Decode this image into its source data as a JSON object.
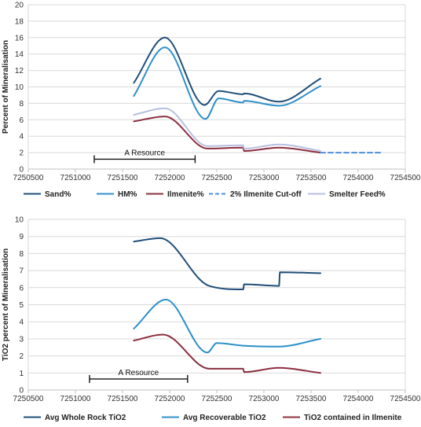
{
  "chart_data": [
    {
      "type": "line",
      "ylabel": "Percent of Mineralisation",
      "xlim": [
        7250500,
        7254500
      ],
      "ylim": [
        0,
        20
      ],
      "x_ticks": [
        "7250500",
        "7251000",
        "7251500",
        "7252000",
        "7252500",
        "7253000",
        "7253500",
        "7254000",
        "7254500"
      ],
      "y_ticks": [
        "0",
        "2",
        "4",
        "6",
        "8",
        "10",
        "12",
        "14",
        "16",
        "18",
        "20"
      ],
      "grid": true,
      "legend_position": "bottom",
      "annotation": {
        "label": "A Resource",
        "x_start": 7251200,
        "x_end": 7252270,
        "y": 1.2
      },
      "series": [
        {
          "name": "Sand%",
          "color": "#1f4e79",
          "dash": "solid",
          "x": [
            7251620,
            7251950,
            7252370,
            7252520,
            7252780,
            7252790,
            7253160,
            7253600
          ],
          "y": [
            10.5,
            16.0,
            7.8,
            9.5,
            9.1,
            9.2,
            8.2,
            11.0
          ]
        },
        {
          "name": "HM%",
          "color": "#2e8fc8",
          "dash": "solid",
          "x": [
            7251620,
            7251950,
            7252380,
            7252520,
            7252780,
            7252790,
            7253160,
            7253600
          ],
          "y": [
            8.9,
            14.8,
            6.1,
            8.6,
            8.1,
            8.3,
            7.7,
            10.1
          ]
        },
        {
          "name": "Ilmenite%",
          "color": "#8b2e3e",
          "dash": "solid",
          "x": [
            7251620,
            7251950,
            7252400,
            7252780,
            7252790,
            7253160,
            7253600
          ],
          "y": [
            5.8,
            6.4,
            2.5,
            2.6,
            2.2,
            2.6,
            2.0
          ]
        },
        {
          "name": "2% Ilmenite Cut-off",
          "color": "#4d8fd6",
          "dash": "dashed",
          "x": [
            7253600,
            7254250
          ],
          "y": [
            2.0,
            2.0
          ]
        },
        {
          "name": "Smelter Feed%",
          "color": "#b8bfe0",
          "dash": "solid",
          "x": [
            7251620,
            7251950,
            7252400,
            7252780,
            7252790,
            7253160,
            7253600
          ],
          "y": [
            6.6,
            7.4,
            2.8,
            2.9,
            2.5,
            3.0,
            2.2
          ]
        }
      ]
    },
    {
      "type": "line",
      "ylabel": "TiO2 percent of Mineralisation",
      "xlim": [
        7250500,
        7254500
      ],
      "ylim": [
        0,
        10
      ],
      "x_ticks": [
        "7250500",
        "7251000",
        "7251500",
        "7252000",
        "7252500",
        "7253000",
        "7253500",
        "7254000",
        "7254500"
      ],
      "y_ticks": [
        "0",
        "1",
        "2",
        "3",
        "4",
        "5",
        "6",
        "7",
        "8",
        "9",
        "10"
      ],
      "grid": true,
      "legend_position": "bottom",
      "annotation": {
        "label": "A Resource",
        "x_start": 7251150,
        "x_end": 7252190,
        "y": 0.65
      },
      "series": [
        {
          "name": "Avg Whole Rock TiO2",
          "color": "#1f4e79",
          "dash": "solid",
          "x": [
            7251620,
            7251900,
            7252420,
            7252780,
            7252790,
            7253160,
            7253170,
            7253600
          ],
          "y": [
            8.7,
            8.9,
            6.1,
            5.9,
            6.2,
            6.1,
            6.9,
            6.85
          ]
        },
        {
          "name": "Avg Recoverable TiO2",
          "color": "#2e8fc8",
          "dash": "solid",
          "x": [
            7251620,
            7251960,
            7252400,
            7252500,
            7252780,
            7253160,
            7253600
          ],
          "y": [
            3.6,
            5.3,
            2.2,
            2.75,
            2.6,
            2.55,
            3.0
          ]
        },
        {
          "name": "TiO2 contained in Ilmenite",
          "color": "#8b2e3e",
          "dash": "solid",
          "x": [
            7251620,
            7251930,
            7252420,
            7252780,
            7252790,
            7253160,
            7253600
          ],
          "y": [
            2.9,
            3.25,
            1.25,
            1.25,
            1.05,
            1.3,
            1.0
          ]
        }
      ]
    }
  ]
}
